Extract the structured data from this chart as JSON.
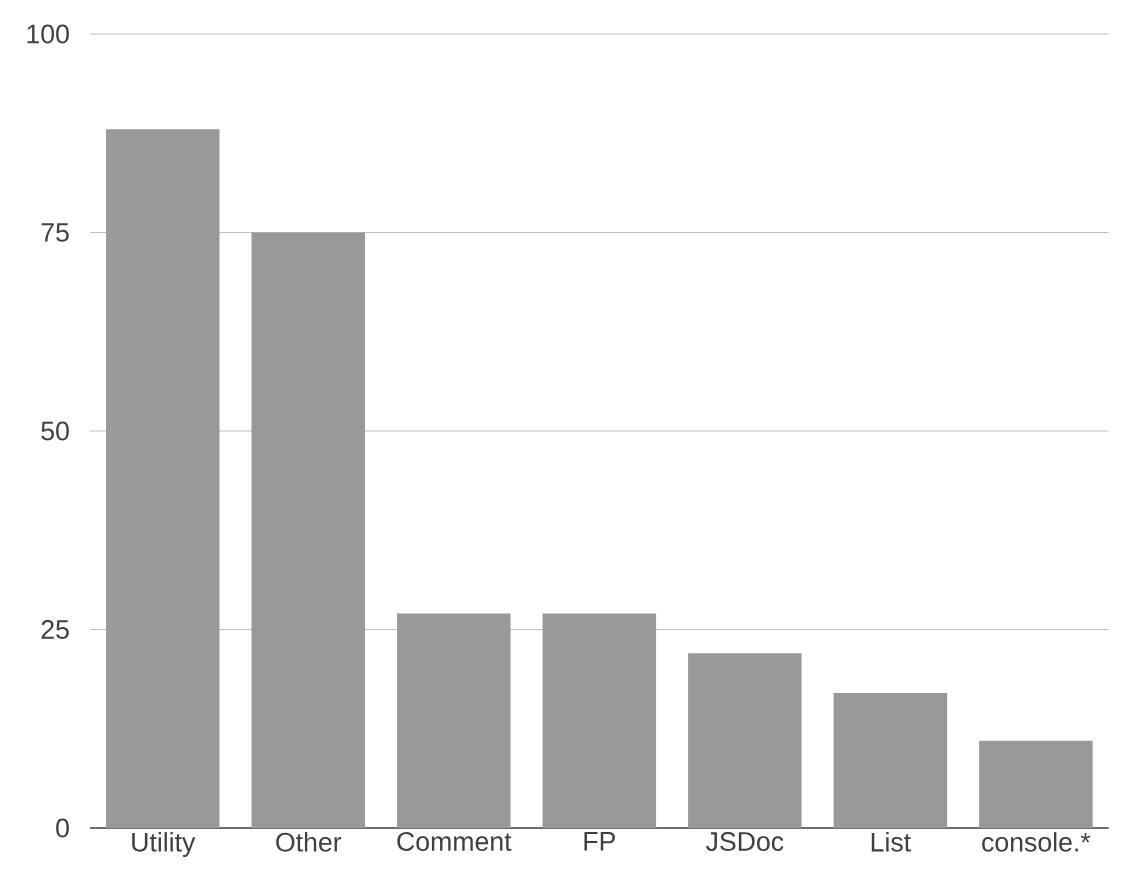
{
  "chart_data": {
    "type": "bar",
    "categories": [
      "Utility",
      "Other",
      "Comment",
      "FP",
      "JSDoc",
      "List",
      "console.*"
    ],
    "values": [
      88,
      75,
      27,
      27,
      22,
      17,
      11
    ],
    "color": "#999999",
    "ylim": [
      0,
      100
    ],
    "yticks": [
      0,
      25,
      50,
      75,
      100
    ],
    "grid": "y"
  }
}
